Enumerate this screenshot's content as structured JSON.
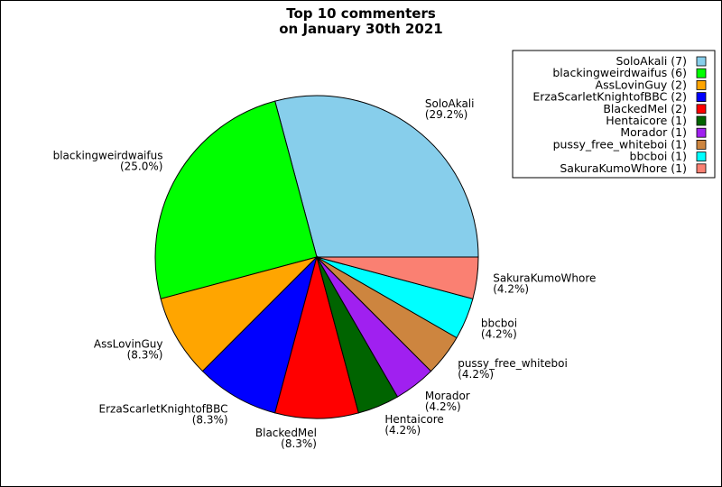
{
  "chart_data": {
    "type": "pie",
    "title_lines": [
      "Top 10 commenters",
      "on January 30th 2021"
    ],
    "slices": [
      {
        "name": "SoloAkali",
        "value": 7,
        "percent_label": "(29.2%)",
        "legend_label": "SoloAkali (7)",
        "color": "#87CEEB"
      },
      {
        "name": "blackingweirdwaifus",
        "value": 6,
        "percent_label": "(25.0%)",
        "legend_label": "blackingweirdwaifus (6)",
        "color": "#00FF00"
      },
      {
        "name": "AssLovinGuy",
        "value": 2,
        "percent_label": "(8.3%)",
        "legend_label": "AssLovinGuy (2)",
        "color": "#FFA500"
      },
      {
        "name": "ErzaScarletKnightofBBC",
        "value": 2,
        "percent_label": "(8.3%)",
        "legend_label": "ErzaScarletKnightofBBC (2)",
        "color": "#0000FF"
      },
      {
        "name": "BlackedMel",
        "value": 2,
        "percent_label": "(8.3%)",
        "legend_label": "BlackedMel (2)",
        "color": "#FF0000"
      },
      {
        "name": "Hentaicore",
        "value": 1,
        "percent_label": "(4.2%)",
        "legend_label": "Hentaicore (1)",
        "color": "#006400"
      },
      {
        "name": "Morador",
        "value": 1,
        "percent_label": "(4.2%)",
        "legend_label": "Morador (1)",
        "color": "#A020F0"
      },
      {
        "name": "pussy_free_whiteboi",
        "value": 1,
        "percent_label": "(4.2%)",
        "legend_label": "pussy_free_whiteboi (1)",
        "color": "#CD853F"
      },
      {
        "name": "bbcboi",
        "value": 1,
        "percent_label": "(4.2%)",
        "legend_label": "bbcboi (1)",
        "color": "#00FFFF"
      },
      {
        "name": "SakuraKumoWhore",
        "value": 1,
        "percent_label": "(4.2%)",
        "legend_label": "SakuraKumoWhore (1)",
        "color": "#FA8072"
      }
    ],
    "start_angle_deg": 0,
    "direction": "counterclockwise",
    "legend_placement": "top-right"
  }
}
